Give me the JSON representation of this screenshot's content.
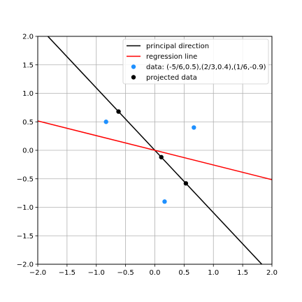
{
  "chart_data": {
    "type": "scatter",
    "title": "",
    "xlabel": "",
    "ylabel": "",
    "xlim": [
      -2.0,
      2.0
    ],
    "ylim": [
      -2.0,
      2.0
    ],
    "grid": true,
    "legend_position": "top-right",
    "x_ticks": [
      "−2.0",
      "−1.5",
      "−1.0",
      "−0.5",
      "0.0",
      "0.5",
      "1.0",
      "1.5",
      "2.0"
    ],
    "x_tick_values": [
      -2.0,
      -1.5,
      -1.0,
      -0.5,
      0.0,
      0.5,
      1.0,
      1.5,
      2.0
    ],
    "y_ticks": [
      "2.0",
      "1.5",
      "1.0",
      "0.5",
      "0.0",
      "−0.5",
      "−1.0",
      "−1.5",
      "−2.0"
    ],
    "y_tick_values": [
      2.0,
      1.5,
      1.0,
      0.5,
      0.0,
      -0.5,
      -1.0,
      -1.5,
      -2.0
    ],
    "series": [
      {
        "name": "principal direction",
        "kind": "line",
        "color": "#000000",
        "points": [
          [
            -1.9,
            2.08
          ],
          [
            1.9,
            -2.08
          ]
        ]
      },
      {
        "name": "regression line",
        "kind": "line",
        "color": "#ff0000",
        "points": [
          [
            -2.0,
            0.515
          ],
          [
            2.0,
            -0.515
          ]
        ]
      },
      {
        "name": "data: (-5/6,0.5),(2/3,0.4),(1/6,-0.9)",
        "kind": "scatter",
        "color": "#1e90ff",
        "points": [
          [
            -0.8333,
            0.5
          ],
          [
            0.6667,
            0.4
          ],
          [
            0.1667,
            -0.9
          ]
        ]
      },
      {
        "name": "projected data",
        "kind": "scatter",
        "color": "#000000",
        "points": [
          [
            -0.62,
            0.68
          ],
          [
            0.11,
            -0.12
          ],
          [
            0.53,
            -0.58
          ]
        ]
      }
    ]
  }
}
